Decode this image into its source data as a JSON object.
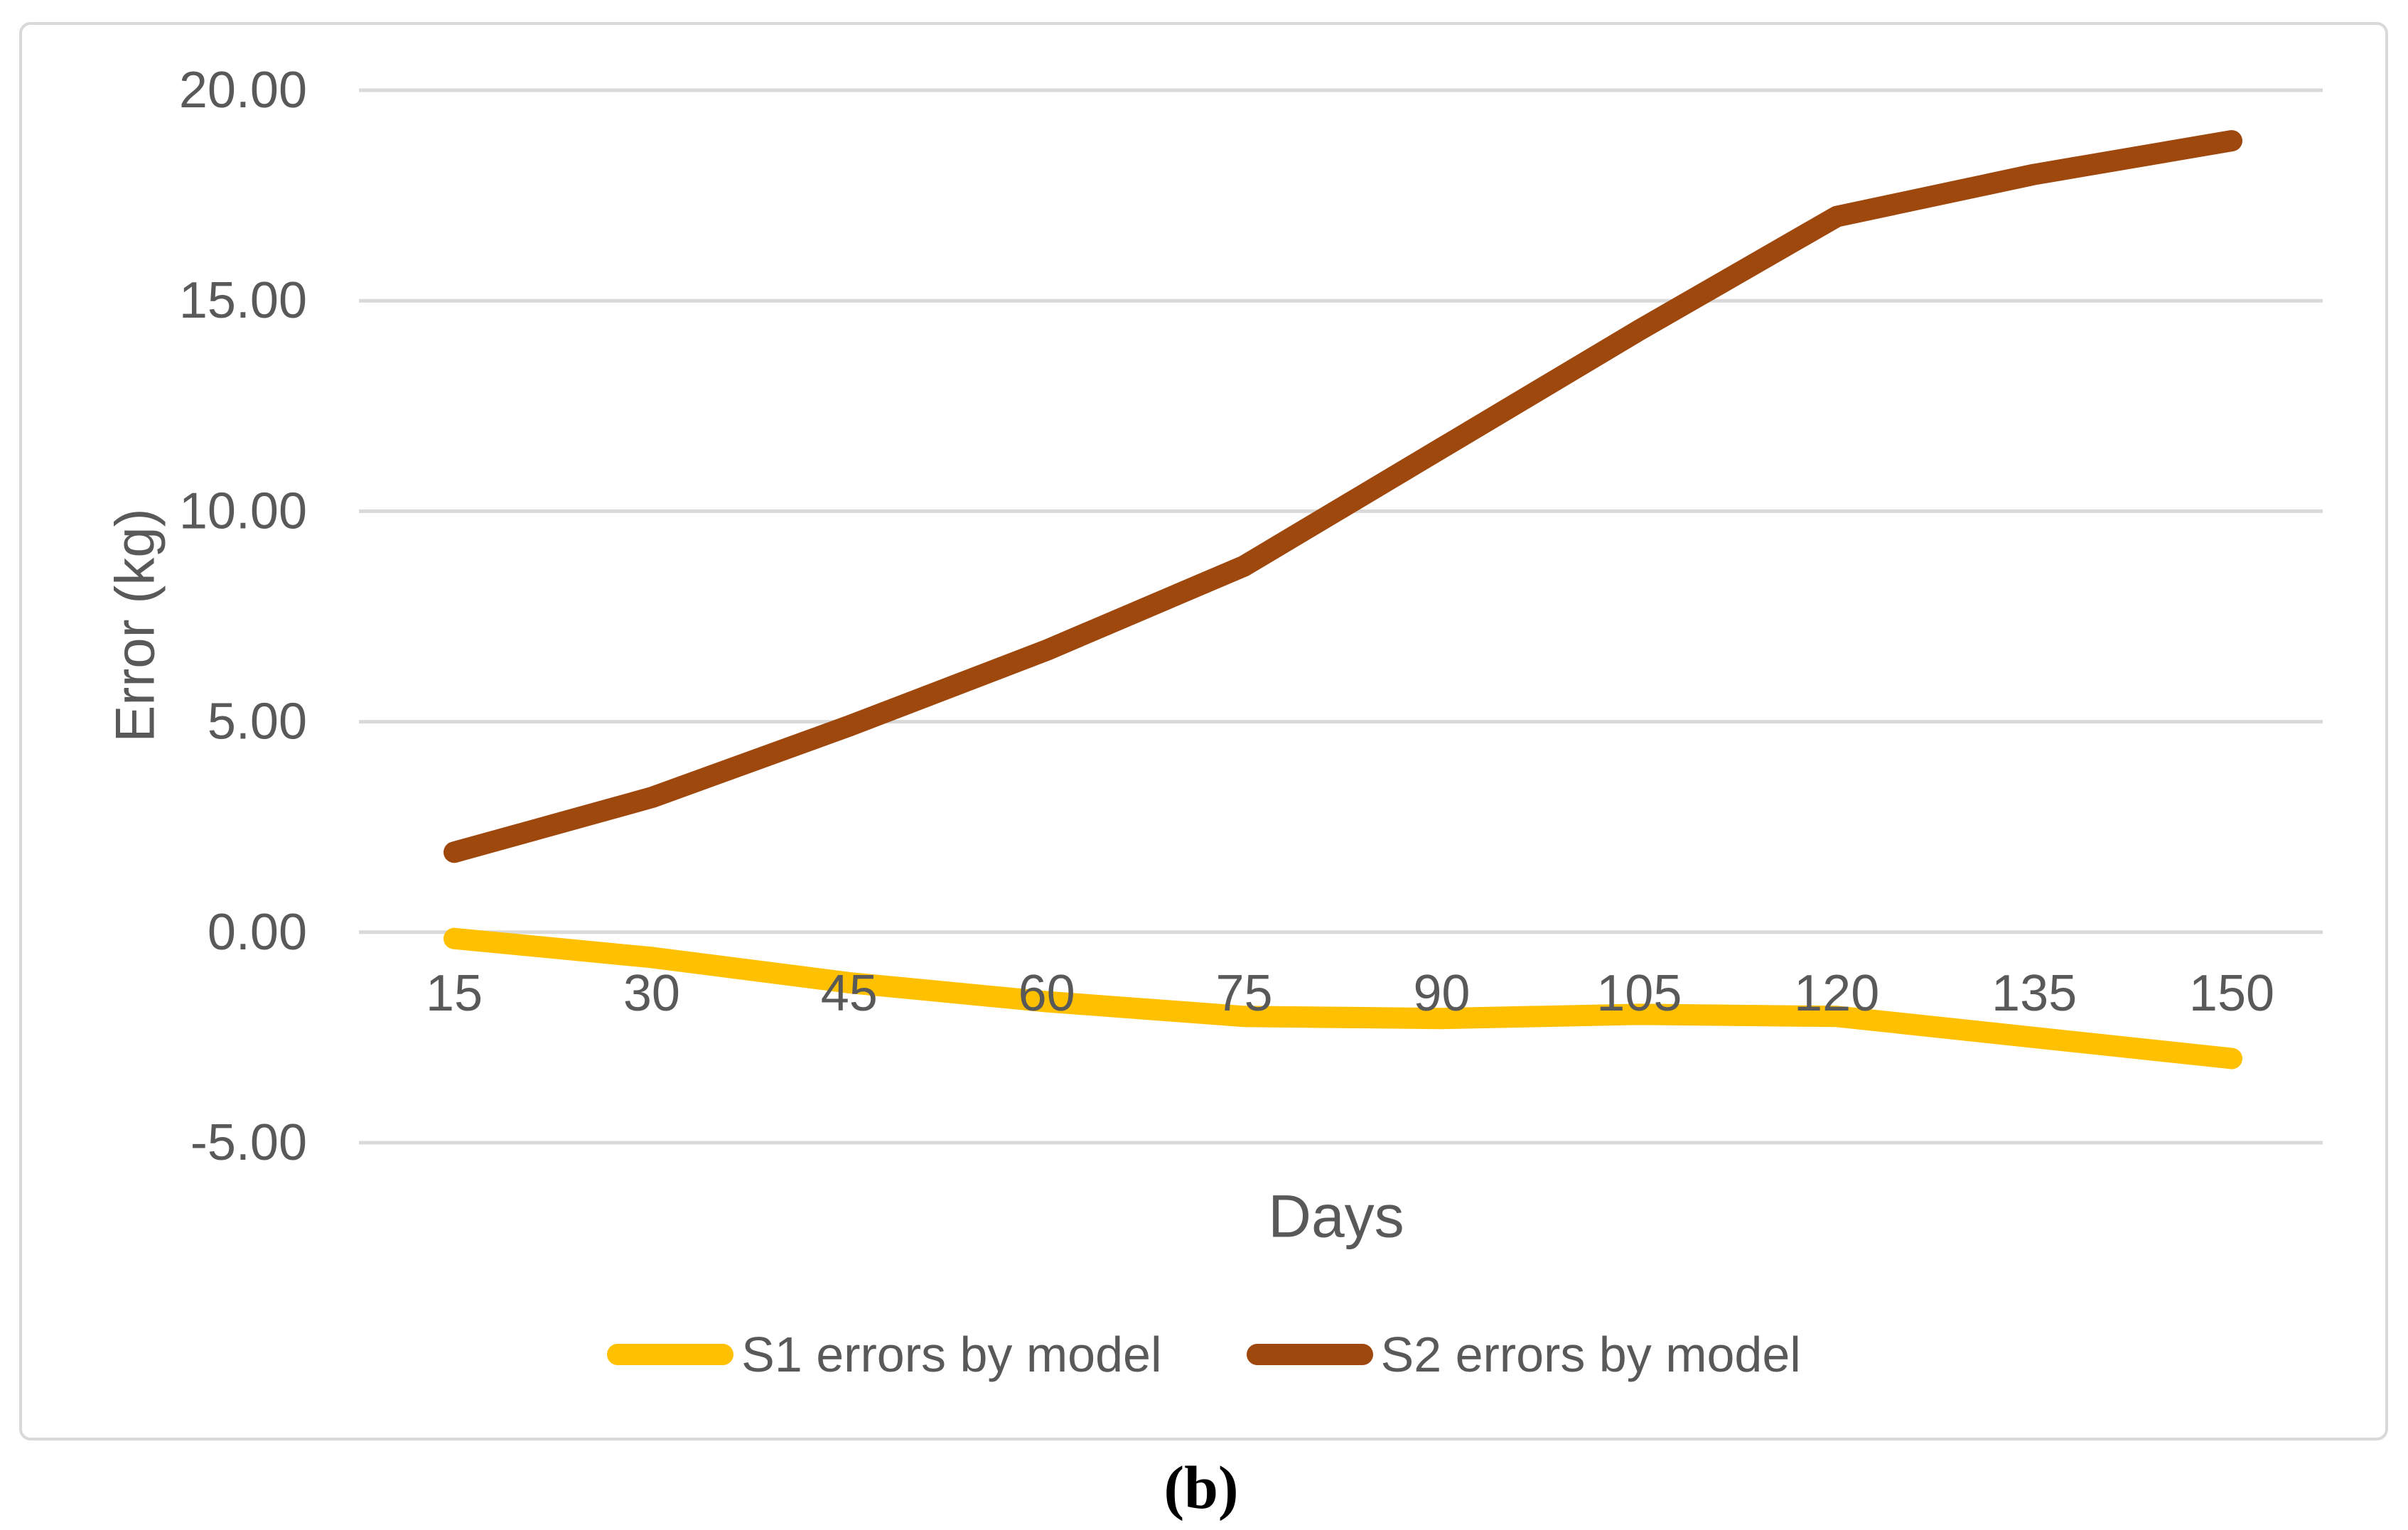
{
  "figure": {
    "caption": "(b)"
  },
  "chart_data": {
    "type": "line",
    "title": "",
    "xlabel": "Days",
    "ylabel": "Error (kg)",
    "x": [
      15,
      30,
      45,
      60,
      75,
      90,
      105,
      120,
      135,
      150
    ],
    "x_tick_labels": [
      "15",
      "30",
      "45",
      "60",
      "75",
      "90",
      "105",
      "120",
      "135",
      "150"
    ],
    "y_ticks": [
      {
        "label": "20.00",
        "value": 20
      },
      {
        "label": "15.00",
        "value": 15
      },
      {
        "label": "10.00",
        "value": 10
      },
      {
        "label": "5.00",
        "value": 5
      },
      {
        "label": "0.00",
        "value": 0
      },
      {
        "label": "-5.00",
        "value": -5
      }
    ],
    "ylim": [
      -5,
      20
    ],
    "xlim": [
      15,
      150
    ],
    "grid": true,
    "legend_position": "bottom",
    "series": [
      {
        "name": "S1 errors by model",
        "color": "#FFC000",
        "values": [
          -0.15,
          -0.6,
          -1.2,
          -1.65,
          -2.0,
          -2.05,
          -1.95,
          -2.0,
          -2.5,
          -3.0
        ]
      },
      {
        "name": "S2 errors by model",
        "color": "#9E480E",
        "values": [
          1.9,
          3.2,
          4.9,
          6.7,
          8.7,
          11.5,
          14.3,
          17.0,
          18.0,
          18.8
        ]
      }
    ],
    "colors": {
      "gridline": "#D9D9D9",
      "border": "#D9D9D9",
      "axis_text": "#595959",
      "caption_text": "#000000",
      "background": "#FFFFFF"
    }
  }
}
